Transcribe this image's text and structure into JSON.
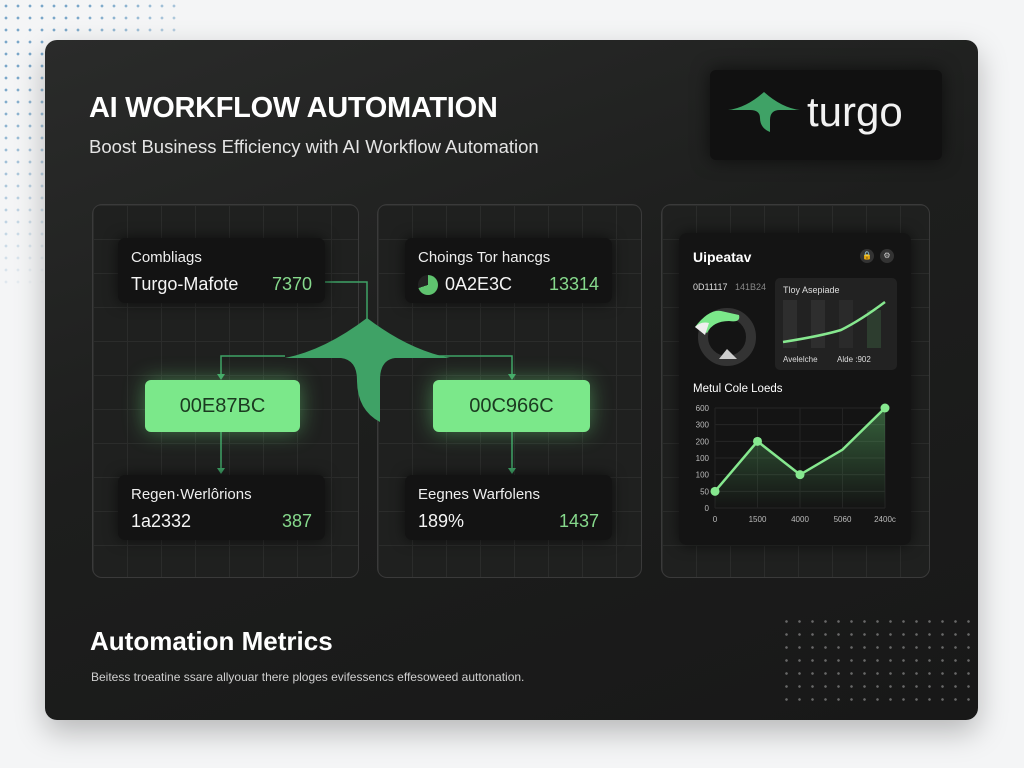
{
  "header": {
    "title": "AI WORKFLOW AUTOMATION",
    "subtitle": "Boost Business Efficiency with AI Workflow Automation"
  },
  "logo": {
    "text": "turgo",
    "icon": "turgo-logo-icon",
    "color": "#3fa266"
  },
  "flow": {
    "left": {
      "top_card": {
        "label": "Combliags",
        "value": "Turgo-Mafote",
        "number": "7370"
      },
      "node": "00E87BC",
      "bottom_card": {
        "label": "Regen·Werlôrions",
        "value": "1a2332",
        "number": "387"
      }
    },
    "right": {
      "top_card": {
        "label": "Choings Tor hancgs",
        "value": "0A2E3C",
        "number": "13314",
        "icon": "pie-icon"
      },
      "node": "00C966C",
      "bottom_card": {
        "label": "Eegnes Warfolens",
        "value": "189%",
        "number": "1437"
      }
    }
  },
  "dashboard": {
    "title": "Uipeatav",
    "icons": [
      "lock-icon",
      "settings-icon"
    ],
    "stat_a": "0D11117",
    "stat_b": "141B24",
    "mini_chart": {
      "title": "Tloy Asepiade",
      "label_a": "Avelelche",
      "label_b": "Alde :902"
    },
    "chart_title": "Metul Cole Loeds"
  },
  "chart_data": {
    "type": "line",
    "title": "Metul Cole Loeds",
    "categories": [
      "0",
      "1500",
      "4000",
      "5060",
      "2400c"
    ],
    "values": [
      50,
      200,
      100,
      150,
      600
    ],
    "y_ticks": [
      "0",
      "50",
      "100",
      "100",
      "200",
      "300",
      "600"
    ],
    "grid": true,
    "color": "#86e88f"
  },
  "footer": {
    "title": "Automation Metrics",
    "description": "Beitess troeatine ssare allyouar there ploges evifessencs effesoweed auttonation."
  },
  "colors": {
    "accent": "#7be88a",
    "background": "#1d1e1d"
  }
}
